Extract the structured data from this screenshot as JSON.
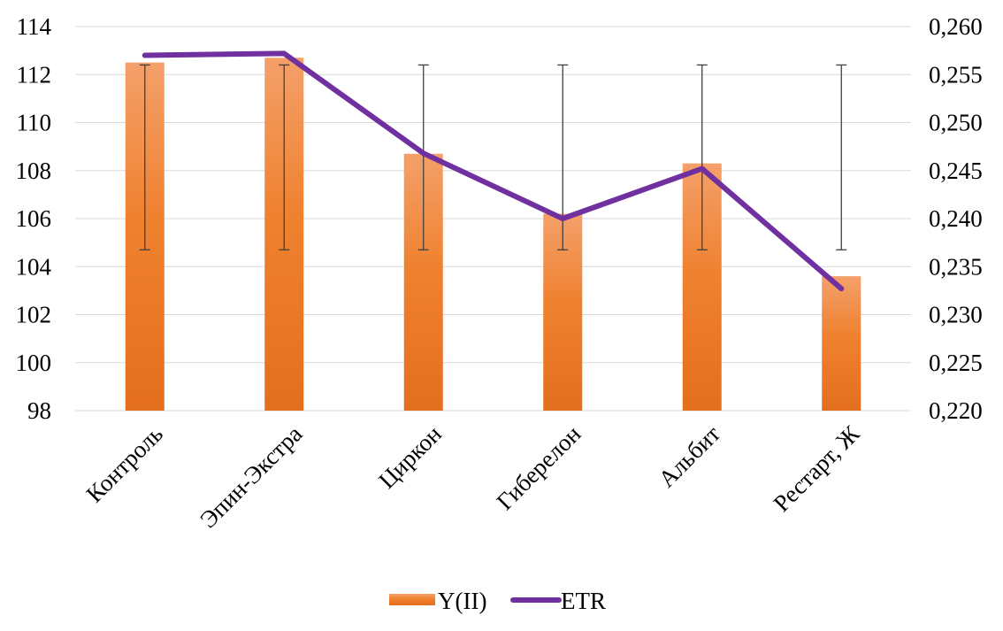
{
  "chart_data": {
    "type": "bar",
    "categories": [
      "Контроль",
      "Эпин-Экстра",
      "Циркон",
      "Гиберелон",
      "Альбит",
      "Рестарт, Ж"
    ],
    "series": [
      {
        "name": "Y(II)",
        "type": "bar",
        "axis": "left",
        "values": [
          112.5,
          112.7,
          108.7,
          106.2,
          108.3,
          103.6
        ],
        "error_low": [
          104.7,
          104.7,
          104.7,
          104.7,
          104.7,
          104.7
        ],
        "error_high": [
          112.4,
          112.4,
          112.4,
          112.4,
          112.4,
          112.4
        ],
        "color": "#ED7D31"
      },
      {
        "name": "ETR",
        "type": "line",
        "axis": "right",
        "values": [
          0.257,
          0.2572,
          0.2468,
          0.24,
          0.2452,
          0.2327
        ],
        "color": "#7030A0"
      }
    ],
    "y_left": {
      "min": 98,
      "max": 114,
      "step": 2,
      "ticks": [
        "98",
        "100",
        "102",
        "104",
        "106",
        "108",
        "110",
        "112",
        "114"
      ]
    },
    "y_right": {
      "min": 0.22,
      "max": 0.26,
      "step": 0.005,
      "ticks": [
        "0,220",
        "0,225",
        "0,230",
        "0,235",
        "0,240",
        "0,245",
        "0,250",
        "0,255",
        "0,260"
      ]
    },
    "grid": true,
    "legend_position": "bottom-center"
  }
}
